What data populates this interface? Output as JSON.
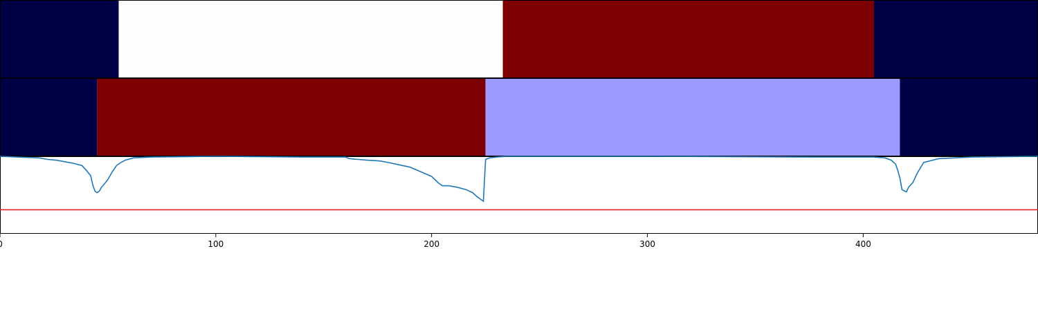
{
  "chart_data": {
    "type": "segmentation-timeline",
    "xlim": [
      0,
      481
    ],
    "x_ticks": [
      0,
      100,
      200,
      300,
      400
    ],
    "x_tick_labels": [
      "0",
      "100",
      "200",
      "300",
      "400"
    ],
    "colors": {
      "navy": "#000046",
      "white": "#fffcfe",
      "dark_red": "#7d0000",
      "lavender": "#9b9bff",
      "line": "#1f77b4",
      "threshold": "#e02020"
    },
    "segment_rows": [
      {
        "segments": [
          {
            "start": 0,
            "end": 55,
            "color": "#000046"
          },
          {
            "start": 55,
            "end": 233,
            "color": "#fffcfe"
          },
          {
            "start": 233,
            "end": 405,
            "color": "#7d0000"
          },
          {
            "start": 405,
            "end": 481,
            "color": "#000046"
          }
        ]
      },
      {
        "segments": [
          {
            "start": 0,
            "end": 45,
            "color": "#000046"
          },
          {
            "start": 45,
            "end": 225,
            "color": "#7d0000"
          },
          {
            "start": 225,
            "end": 417,
            "color": "#9b9bff"
          },
          {
            "start": 417,
            "end": 481,
            "color": "#000046"
          }
        ]
      }
    ],
    "signal": {
      "ylim": [
        0,
        1
      ],
      "threshold": 0.31,
      "x": [
        0,
        8,
        18,
        22,
        26,
        30,
        34,
        38,
        40,
        42,
        43,
        44,
        45,
        46,
        47,
        48,
        50,
        52,
        54,
        56,
        58,
        62,
        70,
        100,
        140,
        160,
        162,
        166,
        170,
        176,
        180,
        185,
        190,
        195,
        200,
        203,
        205,
        208,
        212,
        216,
        219,
        221,
        222,
        223,
        224,
        225,
        226,
        227,
        230,
        235,
        245,
        300,
        380,
        405,
        410,
        413,
        415,
        416,
        417,
        418,
        420,
        421,
        423,
        425,
        428,
        435,
        450,
        481
      ],
      "y": [
        1.0,
        0.99,
        0.98,
        0.96,
        0.95,
        0.93,
        0.91,
        0.88,
        0.82,
        0.75,
        0.63,
        0.55,
        0.53,
        0.55,
        0.6,
        0.63,
        0.7,
        0.8,
        0.88,
        0.92,
        0.95,
        0.98,
        0.99,
        1.0,
        0.99,
        0.99,
        0.97,
        0.96,
        0.95,
        0.94,
        0.92,
        0.89,
        0.86,
        0.8,
        0.74,
        0.66,
        0.62,
        0.62,
        0.6,
        0.57,
        0.53,
        0.48,
        0.46,
        0.44,
        0.42,
        0.96,
        0.97,
        0.98,
        0.99,
        1.0,
        1.0,
        1.0,
        0.99,
        0.99,
        0.98,
        0.95,
        0.9,
        0.82,
        0.72,
        0.57,
        0.54,
        0.6,
        0.66,
        0.78,
        0.92,
        0.97,
        0.99,
        1.0
      ]
    }
  }
}
